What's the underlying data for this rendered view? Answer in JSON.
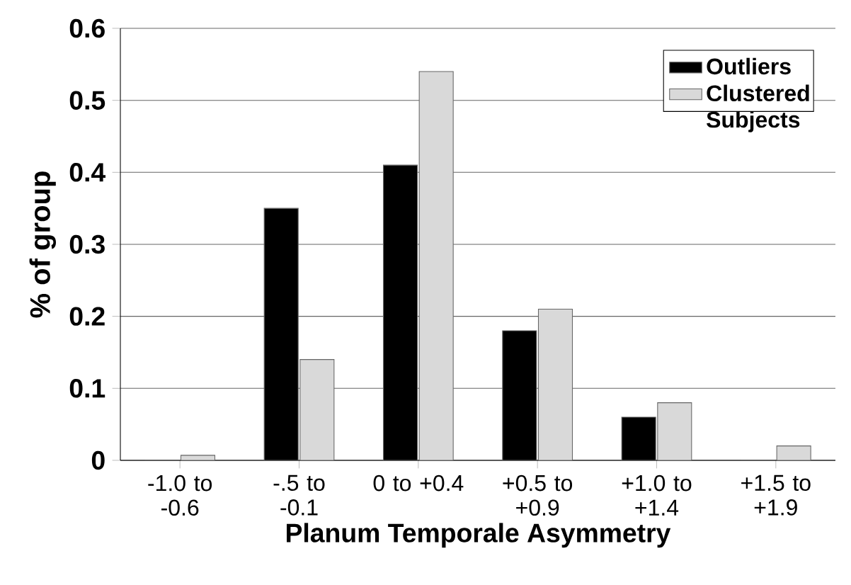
{
  "chart_data": {
    "type": "bar",
    "xlabel": "Planum Temporale Asymmetry",
    "ylabel": "% of group",
    "categories": [
      "-1.0 to -0.6",
      "-.5 to -0.1",
      "0 to +0.4",
      "+0.5 to +0.9",
      "+1.0 to +1.4",
      "+1.5 to +1.9"
    ],
    "series": [
      {
        "name": "Outliers",
        "color": "#000000",
        "values": [
          0,
          0.35,
          0.41,
          0.18,
          0.06,
          0
        ]
      },
      {
        "name": "Clustered Subjects",
        "color": "#d9d9d9",
        "values": [
          0.007,
          0.14,
          0.54,
          0.21,
          0.08,
          0.02
        ]
      }
    ],
    "ylim": [
      0,
      0.6
    ],
    "yticks": [
      0,
      0.1,
      0.2,
      0.3,
      0.4,
      0.5,
      0.6
    ],
    "grid": "y",
    "legend": "top right"
  }
}
